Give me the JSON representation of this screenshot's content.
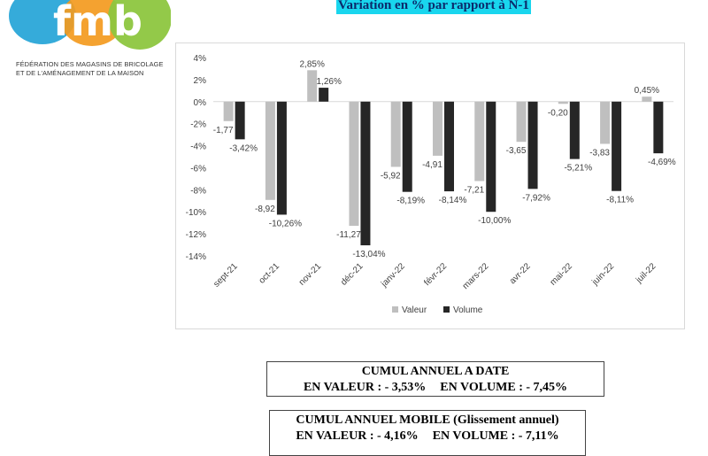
{
  "headline": "Variation en % par rapport à N-1",
  "logo": {
    "text": "fmb",
    "line1": "FÉDÉRATION DES MAGASINS DE BRICOLAGE",
    "line2": "ET DE L'AMÉNAGEMENT DE LA MAISON",
    "colors": {
      "orange": "#f39a1e",
      "green": "#8dc63f",
      "blue": "#2aa7d8"
    }
  },
  "chart_data": {
    "type": "bar",
    "categories": [
      "sept-21",
      "oct-21",
      "nov-21",
      "déc-21",
      "janv-22",
      "févr-22",
      "mars-22",
      "avr-22",
      "mai-22",
      "juin-22",
      "juil-22"
    ],
    "series": [
      {
        "name": "Valeur",
        "color": "#bfbfbf",
        "values": [
          -1.77,
          -8.92,
          2.85,
          -11.27,
          -5.92,
          -4.91,
          -7.21,
          -3.65,
          -0.2,
          -3.83,
          0.45
        ],
        "labels": [
          "-1,77",
          "-8,92",
          "2,85%",
          "-11,27",
          "-5,92",
          "-4,91",
          "-7,21",
          "-3,65",
          "-0,20",
          "-3,83",
          "0,45%"
        ]
      },
      {
        "name": "Volume",
        "color": "#262626",
        "values": [
          -3.42,
          -10.26,
          1.26,
          -13.04,
          -8.19,
          -8.14,
          -10.0,
          -7.92,
          -5.21,
          -8.11,
          -4.69
        ],
        "labels": [
          "-3,42%",
          "-10,26%",
          "1,26%",
          "-13,04%",
          "-8,19%",
          "-8,14%",
          "-10,00%",
          "-7,92%",
          "-5,21%",
          "-8,11%",
          "-4,69%"
        ]
      }
    ],
    "y_ticks": [
      "4%",
      "2%",
      "0%",
      "-2%",
      "-4%",
      "-6%",
      "-8%",
      "-10%",
      "-12%",
      "-14%"
    ],
    "ylim": [
      -14,
      4
    ],
    "grid": false,
    "legend": "bottom"
  },
  "summary": {
    "cumul_date": {
      "title": "CUMUL ANNUEL A DATE",
      "valeur": "EN VALEUR : - 3,53%",
      "volume": "EN VOLUME : - 7,45%"
    },
    "cumul_mobile": {
      "title": "CUMUL ANNUEL MOBILE (Glissement annuel)",
      "valeur": "EN VALEUR : - 4,16%",
      "volume": "EN VOLUME : - 7,11%"
    }
  }
}
